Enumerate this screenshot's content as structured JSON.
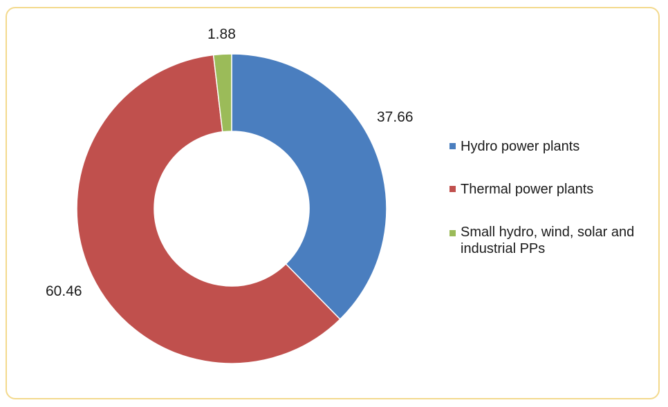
{
  "chart_data": {
    "type": "pie",
    "variant": "doughnut",
    "title": "",
    "slices": [
      {
        "label": "Hydro power plants",
        "value": 37.66,
        "data_label": "37.66",
        "color": "#4a7ebf"
      },
      {
        "label": "Thermal power plants",
        "value": 60.46,
        "data_label": "60.46",
        "color": "#c0504d"
      },
      {
        "label": "Small hydro, wind, solar and industrial PPs",
        "value": 1.88,
        "data_label": "1.88",
        "color": "#9bbb59"
      }
    ],
    "start": "12 o'clock",
    "direction": "clockwise",
    "legend_position": "right"
  },
  "legend": {
    "items": [
      {
        "label": "Hydro power plants"
      },
      {
        "label": "Thermal power plants"
      },
      {
        "label": "Small hydro, wind, solar and industrial PPs"
      }
    ]
  },
  "colors": {
    "frame_border": "#f3d98c",
    "hydro": "#4a7ebf",
    "thermal": "#c0504d",
    "small": "#9bbb59"
  }
}
